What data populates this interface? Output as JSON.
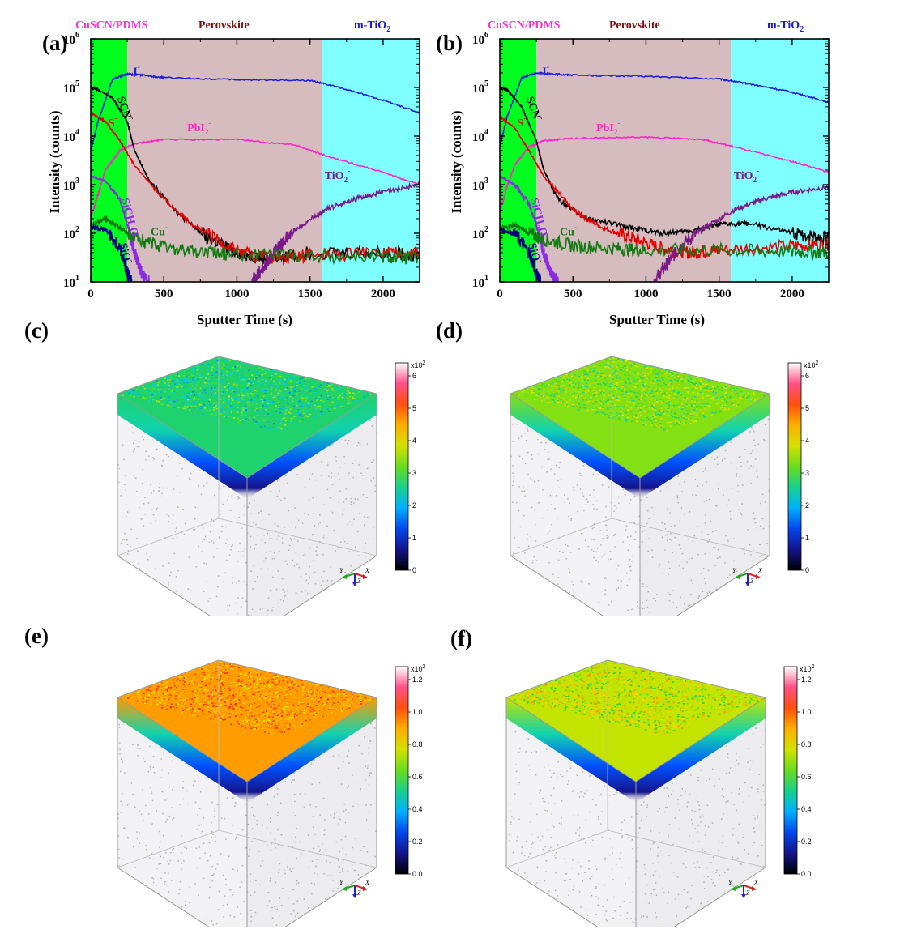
{
  "panels": [
    "(a)",
    "(b)",
    "(c)",
    "(d)",
    "(e)",
    "(f)"
  ],
  "regions": {
    "left": "CuSCN/PDMS",
    "middle": "Perovskite",
    "right_base": "m-TiO",
    "right_sub": "2"
  },
  "colors": {
    "cuscn_region": "#00ff1e",
    "perovskite_region": "#d6bcbe",
    "tio2_region": "#7fffff",
    "cuscn_label": "#ff33cc",
    "perovskite_label": "#7a1010",
    "tio2_label": "#1a1acc"
  },
  "chart_data": [
    {
      "type": "line",
      "panel": "(a)",
      "xlabel": "Sputter Time (s)",
      "ylabel": "Intensity (counts)",
      "xlim": [
        0,
        2250
      ],
      "ylim": [
        10,
        1000000
      ],
      "yscale": "log",
      "xticks": [
        0,
        500,
        1000,
        1500,
        2000
      ],
      "yticks": [
        "10",
        "10",
        "10",
        "10",
        "10",
        "10"
      ],
      "ytick_exp": [
        "1",
        "2",
        "3",
        "4",
        "5",
        "6"
      ],
      "regions": [
        [
          0,
          250
        ],
        [
          250,
          1580
        ],
        [
          1580,
          2250
        ]
      ],
      "series": [
        {
          "name": "I",
          "sup": "-",
          "color": "#1f1fd6",
          "x": [
            0,
            50,
            150,
            250,
            350,
            500,
            1000,
            1500,
            1700,
            2000,
            2250
          ],
          "y": [
            5000,
            20000,
            150000,
            190000,
            180000,
            160000,
            145000,
            140000,
            100000,
            55000,
            30000
          ]
        },
        {
          "name": "PbI",
          "sub": "2",
          "sup": "-",
          "color": "#ff22cc",
          "x": [
            0,
            100,
            200,
            300,
            500,
            1000,
            1400,
            1600,
            2000,
            2250
          ],
          "y": [
            200,
            2000,
            5000,
            7000,
            8500,
            8500,
            6500,
            4000,
            1800,
            1000
          ]
        },
        {
          "name": "SCN",
          "sup": "-",
          "color": "#000000",
          "x": [
            0,
            50,
            150,
            250,
            300,
            400,
            600,
            800,
            1000,
            1200,
            1500,
            2000,
            2250
          ],
          "y": [
            100000,
            90000,
            60000,
            20000,
            5000,
            1200,
            250,
            80,
            40,
            30,
            40,
            40,
            35
          ]
        },
        {
          "name": "S",
          "sup": "-",
          "color": "#e60000",
          "x": [
            0,
            100,
            200,
            300,
            500,
            700,
            900,
            1100,
            1300,
            1500,
            2000,
            2250
          ],
          "y": [
            30000,
            20000,
            8000,
            2500,
            500,
            150,
            60,
            35,
            30,
            35,
            40,
            40
          ]
        },
        {
          "name": "TiO",
          "sub": "2",
          "sup": "-",
          "color": "#7a1a8a",
          "x": [
            1100,
            1200,
            1300,
            1400,
            1600,
            1800,
            2000,
            2250
          ],
          "y": [
            10,
            25,
            60,
            120,
            300,
            500,
            700,
            1000
          ]
        },
        {
          "name": "SiCH",
          "sub": "3",
          "tail": "O",
          "sup": "-",
          "color": "#8a2be2",
          "x": [
            0,
            100,
            200,
            250,
            300,
            350,
            400
          ],
          "y": [
            1500,
            1200,
            500,
            150,
            40,
            15,
            10
          ]
        },
        {
          "name": "Cu",
          "sup": "-",
          "color": "#117a11",
          "x": [
            0,
            100,
            200,
            300,
            500,
            800,
            1000,
            1500,
            2000,
            2250
          ],
          "y": [
            150,
            200,
            130,
            80,
            50,
            40,
            38,
            35,
            32,
            30
          ]
        },
        {
          "name": "SiO",
          "sup": "-",
          "color": "#000080",
          "x": [
            0,
            100,
            200,
            250,
            280
          ],
          "y": [
            130,
            120,
            50,
            15,
            10
          ]
        }
      ]
    },
    {
      "type": "line",
      "panel": "(b)",
      "xlabel": "Sputter Time (s)",
      "ylabel": "Intensity (counts)",
      "xlim": [
        0,
        2250
      ],
      "ylim": [
        10,
        1000000
      ],
      "yscale": "log",
      "xticks": [
        0,
        500,
        1000,
        1500,
        2000
      ],
      "yticks": [
        "10",
        "10",
        "10",
        "10",
        "10",
        "10"
      ],
      "ytick_exp": [
        "1",
        "2",
        "3",
        "4",
        "5",
        "6"
      ],
      "regions": [
        [
          0,
          250
        ],
        [
          250,
          1580
        ],
        [
          1580,
          2250
        ]
      ],
      "series": [
        {
          "name": "I",
          "sup": "-",
          "color": "#1f1fd6",
          "x": [
            0,
            50,
            150,
            250,
            350,
            500,
            1000,
            1500,
            1700,
            2000,
            2250
          ],
          "y": [
            6000,
            25000,
            160000,
            200000,
            190000,
            180000,
            170000,
            150000,
            120000,
            80000,
            50000
          ]
        },
        {
          "name": "PbI",
          "sub": "2",
          "sup": "-",
          "color": "#ff22cc",
          "x": [
            0,
            100,
            200,
            300,
            500,
            1000,
            1400,
            1600,
            2000,
            2250
          ],
          "y": [
            300,
            2500,
            6000,
            8000,
            9000,
            9500,
            8500,
            6000,
            3000,
            1800
          ]
        },
        {
          "name": "SCN",
          "sup": "-",
          "color": "#000000",
          "x": [
            0,
            50,
            150,
            250,
            300,
            400,
            600,
            900,
            1100,
            1300,
            1500,
            1700,
            2000,
            2250
          ],
          "y": [
            100000,
            90000,
            40000,
            8000,
            2000,
            500,
            200,
            130,
            100,
            110,
            150,
            160,
            100,
            80
          ]
        },
        {
          "name": "S",
          "sup": "-",
          "color": "#e60000",
          "x": [
            0,
            100,
            200,
            300,
            500,
            700,
            900,
            1100,
            1300,
            1500,
            2000,
            2250
          ],
          "y": [
            25000,
            15000,
            5000,
            1500,
            300,
            130,
            80,
            50,
            40,
            45,
            55,
            60
          ]
        },
        {
          "name": "TiO",
          "sub": "2",
          "sup": "-",
          "color": "#7a1a8a",
          "x": [
            1050,
            1150,
            1250,
            1400,
            1600,
            1800,
            2000,
            2250
          ],
          "y": [
            10,
            25,
            60,
            130,
            300,
            500,
            700,
            900
          ]
        },
        {
          "name": "SiCH",
          "sub": "3",
          "tail": "O",
          "sup": "-",
          "color": "#8a2be2",
          "x": [
            0,
            100,
            200,
            250,
            300,
            350,
            400
          ],
          "y": [
            1500,
            1000,
            400,
            150,
            40,
            15,
            10
          ]
        },
        {
          "name": "Cu",
          "sup": "-",
          "color": "#117a11",
          "x": [
            0,
            100,
            200,
            300,
            500,
            800,
            1000,
            1500,
            2000,
            2250
          ],
          "y": [
            120,
            150,
            100,
            75,
            55,
            48,
            45,
            45,
            42,
            40
          ]
        },
        {
          "name": "SiO",
          "sup": "-",
          "color": "#000080",
          "x": [
            0,
            100,
            200,
            250,
            280
          ],
          "y": [
            120,
            100,
            40,
            15,
            10
          ]
        }
      ]
    },
    {
      "type": "heatmap",
      "panel": "(c)",
      "colorbar": {
        "multiplier": "x10",
        "multiplier_exp": "2",
        "ticks": [
          "0",
          "1",
          "2",
          "3",
          "4",
          "5",
          "6"
        ]
      },
      "top_level": 0.42,
      "axes": [
        "Y",
        "Z",
        "X"
      ]
    },
    {
      "type": "heatmap",
      "panel": "(d)",
      "colorbar": {
        "multiplier": "x10",
        "multiplier_exp": "2",
        "ticks": [
          "0",
          "1",
          "2",
          "3",
          "4",
          "5",
          "6"
        ]
      },
      "top_level": 0.52,
      "axes": [
        "Y",
        "Z",
        "X"
      ]
    },
    {
      "type": "heatmap",
      "panel": "(e)",
      "colorbar": {
        "multiplier": "x10",
        "multiplier_exp": "2",
        "ticks": [
          "0.0",
          "0.2",
          "0.4",
          "0.6",
          "0.8",
          "1.0",
          "1.2"
        ]
      },
      "top_level": 0.72,
      "axes": [
        "Y",
        "Z",
        "X"
      ]
    },
    {
      "type": "heatmap",
      "panel": "(f)",
      "colorbar": {
        "multiplier": "x10",
        "multiplier_exp": "2",
        "ticks": [
          "0.0",
          "0.2",
          "0.4",
          "0.6",
          "0.8",
          "1.0",
          "1.2"
        ]
      },
      "top_level": 0.58,
      "axes": [
        "Y",
        "Z",
        "X"
      ]
    }
  ]
}
